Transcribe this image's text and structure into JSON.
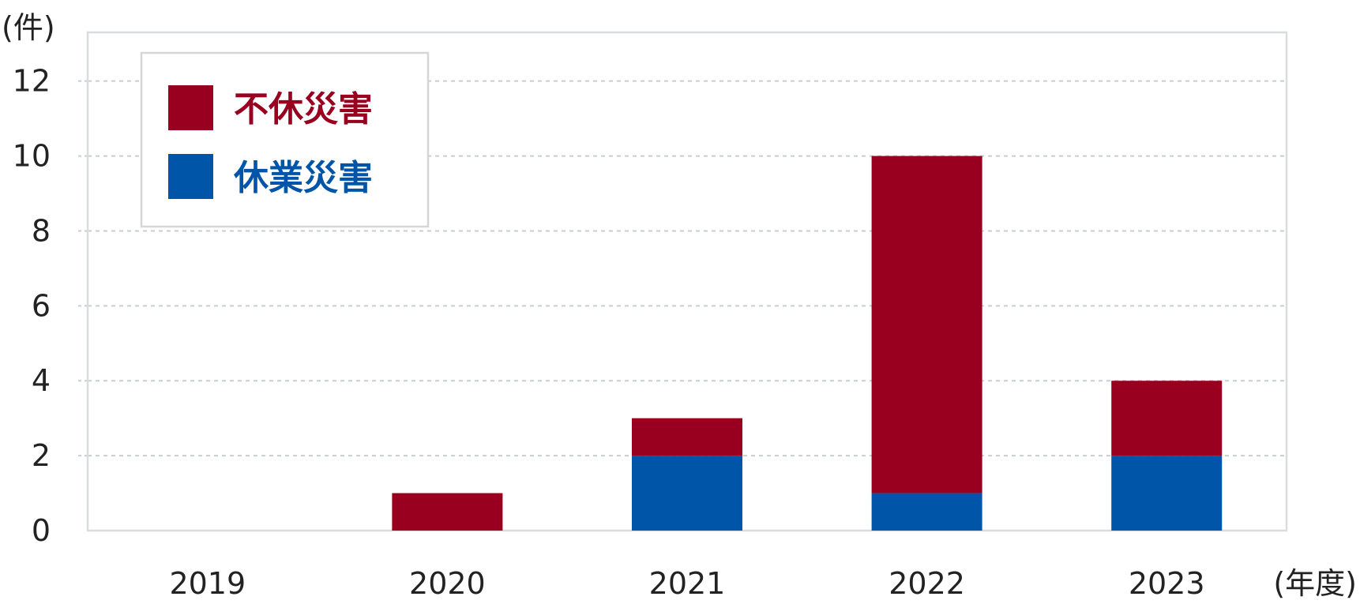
{
  "chart_data": {
    "type": "bar",
    "stacked": true,
    "categories": [
      "2019",
      "2020",
      "2021",
      "2022",
      "2023"
    ],
    "series": [
      {
        "name": "休業災害",
        "values": [
          0,
          0,
          2,
          1,
          2
        ],
        "color": "#0055a8"
      },
      {
        "name": "不休災害",
        "values": [
          0,
          1,
          1,
          9,
          2
        ],
        "color": "#990020"
      }
    ],
    "y_unit": "(件)",
    "x_unit": "(年度)",
    "ylim": [
      0,
      13.3
    ],
    "y_ticks": [
      0,
      2,
      4,
      6,
      8,
      10,
      12
    ],
    "grid": "horizontal dashed",
    "legend_position": "top-left",
    "legend_order": [
      "不休災害",
      "休業災害"
    ]
  }
}
